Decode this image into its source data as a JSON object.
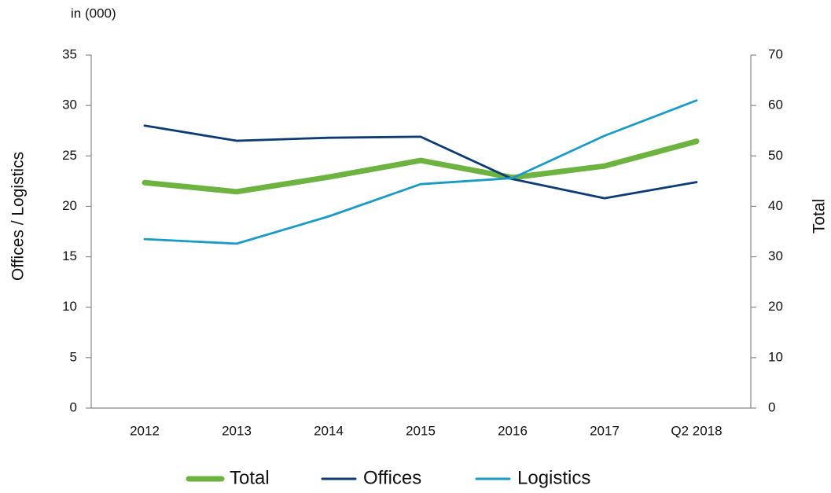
{
  "chart_data": {
    "type": "line",
    "unit_label": "in (000)",
    "ylabel": "Offices / Logistics",
    "y2label": "Total",
    "categories": [
      "2012",
      "2013",
      "2014",
      "2015",
      "2016",
      "2017",
      "Q2 2018"
    ],
    "series": [
      {
        "name": "Total",
        "color": "#6cb33f",
        "axis": "y2",
        "values": [
          44.7,
          42.9,
          45.8,
          49.1,
          45.7,
          48.0,
          52.9
        ]
      },
      {
        "name": "Offices",
        "color": "#0d3c75",
        "values": [
          28.0,
          26.5,
          26.8,
          26.9,
          22.7,
          20.8,
          22.4
        ]
      },
      {
        "name": "Logistics",
        "color": "#1a9bc7",
        "values": [
          16.75,
          16.3,
          19.0,
          22.2,
          22.8,
          27.0,
          30.5
        ]
      }
    ],
    "ylim": [
      0,
      35
    ],
    "yticks": [
      0,
      5,
      10,
      15,
      20,
      25,
      30,
      35
    ],
    "y2lim": [
      0,
      70
    ],
    "y2ticks": [
      0,
      10,
      20,
      30,
      40,
      50,
      60,
      70
    ],
    "legend": "bottom"
  }
}
